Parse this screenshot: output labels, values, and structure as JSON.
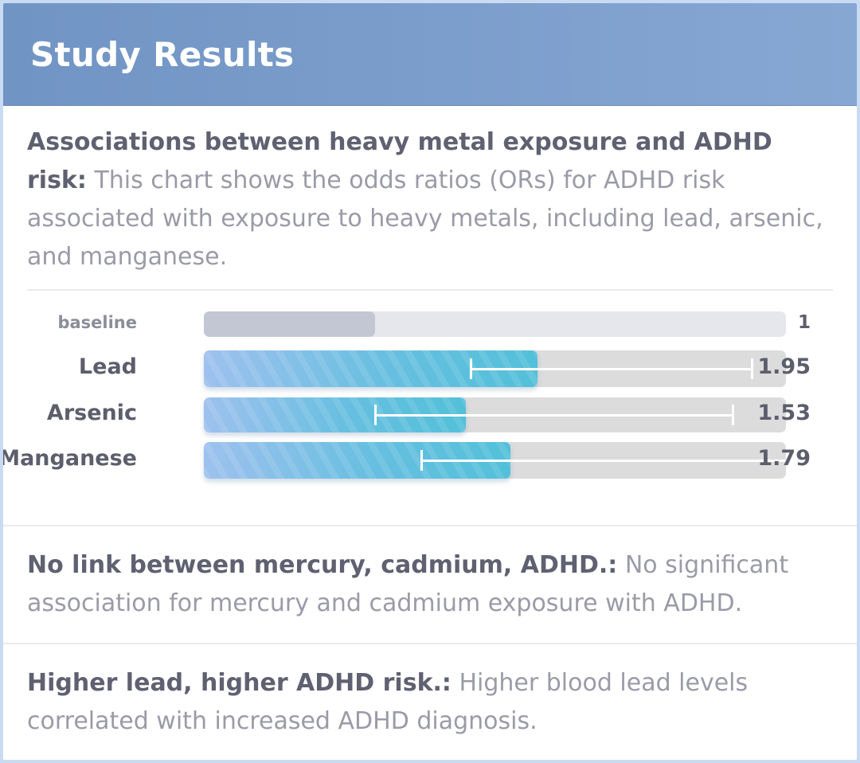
{
  "header": {
    "title": "Study Results"
  },
  "intro": {
    "title": "Associations between heavy metal exposure and ADHD risk:",
    "text": "This chart shows the odds ratios (ORs) for ADHD risk associated with exposure to heavy metals, including lead, arsenic, and manganese."
  },
  "chart_data": {
    "type": "bar",
    "orientation": "horizontal",
    "xlim": [
      0,
      3.4
    ],
    "categories": [
      "baseline",
      "Lead",
      "Arsenic",
      "Manganese"
    ],
    "values": [
      1,
      1.95,
      1.53,
      1.79
    ],
    "value_labels": [
      "1",
      "1.95",
      "1.53",
      "1.79"
    ],
    "ci": [
      null,
      [
        1.56,
        3.2
      ],
      [
        1.0,
        3.09
      ],
      [
        1.27,
        3.4
      ]
    ],
    "colors": {
      "baseline": "#c2c7d3",
      "bar_start": "#9ec1ee",
      "bar_end": "#52c0d9",
      "error_bar": "#ffffff"
    }
  },
  "findings": [
    {
      "title": "No link between mercury, cadmium, ADHD.:",
      "text": "No significant association for mercury and cadmium exposure with ADHD."
    },
    {
      "title": "Higher lead, higher ADHD risk.:",
      "text": "Higher blood lead levels correlated with increased ADHD diagnosis."
    }
  ]
}
